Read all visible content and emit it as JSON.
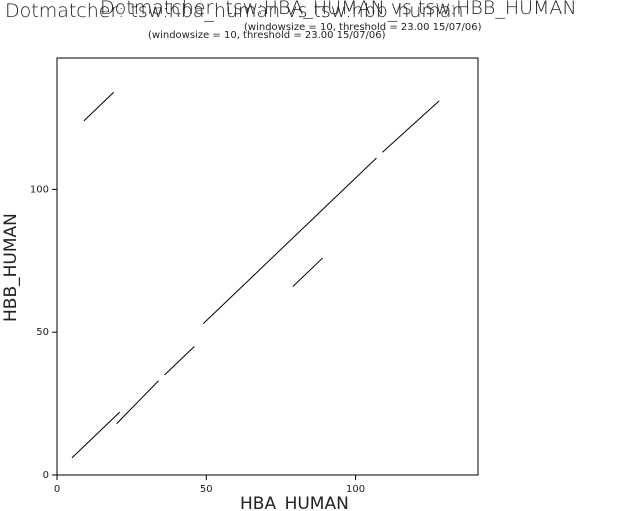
{
  "chart_data": {
    "type": "line",
    "title": "Dotmatcher: tsw:hba_human vs tsw:hbb_human",
    "title_overlay": "Dotmatcher: tsw:HBA_HUMAN vs tsw:HBB_HUMAN",
    "subtitle": "(windowsize = 10, threshold = 23.00  15/07/06)",
    "subtitle_overlay": "(windowsize = 10, threshold = 23.00  15/07/06)",
    "xlabel": "HBA_HUMAN",
    "ylabel": "HBB_HUMAN",
    "xlim": [
      0,
      141
    ],
    "ylim": [
      0,
      146
    ],
    "xticks": [
      0,
      50,
      100
    ],
    "yticks": [
      0,
      50,
      100
    ],
    "grid": false,
    "series": [
      {
        "segments": [
          [
            [
              9,
              124
            ],
            [
              19,
              134
            ]
          ],
          [
            [
              5,
              6
            ],
            [
              21,
              22
            ]
          ],
          [
            [
              20,
              18
            ],
            [
              34,
              33
            ]
          ],
          [
            [
              36,
              35
            ],
            [
              46,
              45
            ]
          ],
          [
            [
              49,
              53
            ],
            [
              107,
              111
            ]
          ],
          [
            [
              109,
              113
            ],
            [
              128,
              131
            ]
          ],
          [
            [
              79,
              66
            ],
            [
              89,
              76
            ]
          ]
        ]
      }
    ]
  }
}
